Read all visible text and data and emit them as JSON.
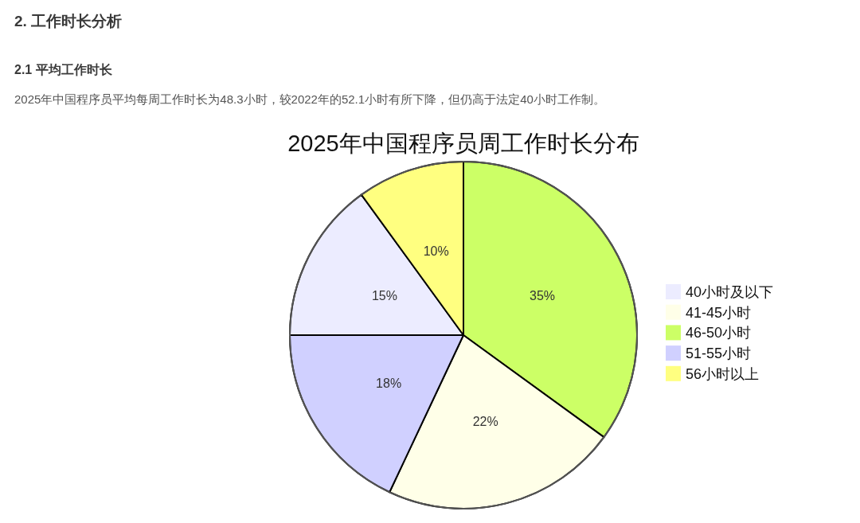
{
  "chart_data": {
    "type": "pie",
    "title": "2025年中国程序员周工作时长分布",
    "annotations": [
      "2. 工作时长分析",
      "2.1 平均工作时长",
      "2025年中国程序员平均每周工作时长为48.3小时，较2022年的52.1小时有所下降，但仍高于法定40小时工作制。"
    ],
    "categories": [
      "40小时及以下",
      "41-45小时",
      "46-50小时",
      "51-55小时",
      "56小时以上"
    ],
    "values": [
      15,
      22,
      35,
      18,
      10
    ],
    "value_labels": [
      "15%",
      "22%",
      "35%",
      "18%",
      "10%"
    ],
    "colors": [
      "#ececff",
      "#ffffe8",
      "#ccff66",
      "#d0d0ff",
      "#ffff80"
    ],
    "legend": "right"
  }
}
